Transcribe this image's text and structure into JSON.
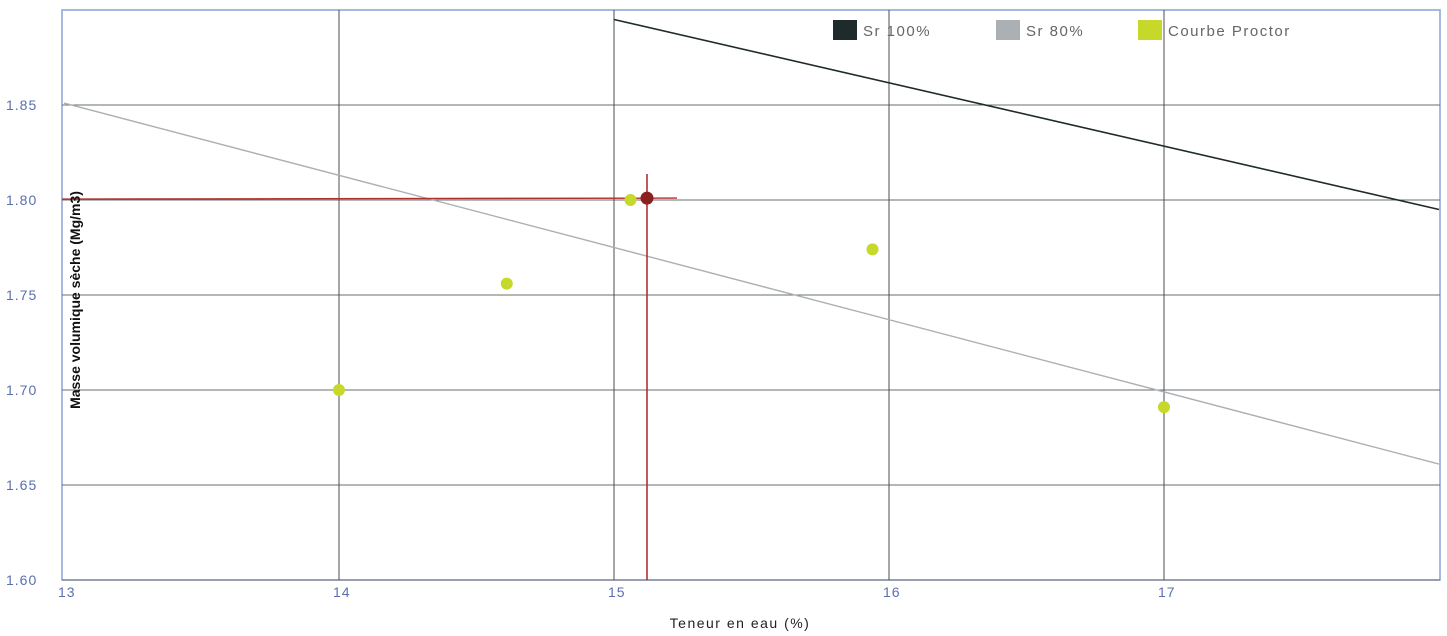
{
  "chart_data": {
    "type": "scatter",
    "title": "",
    "xlabel": "Teneur en eau (%)",
    "ylabel": "Masse volumique sèche (Mg/m3)",
    "xlim": [
      13,
      18
    ],
    "ylim": [
      1.6,
      1.9
    ],
    "x_ticks": [
      13,
      14,
      15,
      16,
      17
    ],
    "y_ticks": [
      1.6,
      1.65,
      1.7,
      1.75,
      1.8,
      1.85
    ],
    "x_tick_labels": [
      "13",
      "14",
      "15",
      "16",
      "17"
    ],
    "y_tick_labels": [
      "1.60",
      "1.65",
      "1.70",
      "1.75",
      "1.80",
      "1.85"
    ],
    "grid": true,
    "legend_position": "top-right",
    "series": [
      {
        "name": "Sr 100%",
        "kind": "line",
        "color": "#1f2a2a",
        "x": [
          15.0,
          18.0
        ],
        "y": [
          1.895,
          1.795
        ]
      },
      {
        "name": "Sr 80%",
        "kind": "line",
        "color": "#aab0b4",
        "x": [
          13.0,
          18.0
        ],
        "y": [
          1.851,
          1.661
        ]
      },
      {
        "name": "Courbe Proctor",
        "kind": "scatter",
        "color": "#c6d82a",
        "x": [
          14.0,
          14.61,
          15.06,
          15.94,
          17.0
        ],
        "y": [
          1.7,
          1.756,
          1.8,
          1.774,
          1.691
        ]
      }
    ],
    "optimum": {
      "x": 15.12,
      "y": 1.801,
      "color": "#b03030",
      "point_color": "#8a2020"
    }
  }
}
